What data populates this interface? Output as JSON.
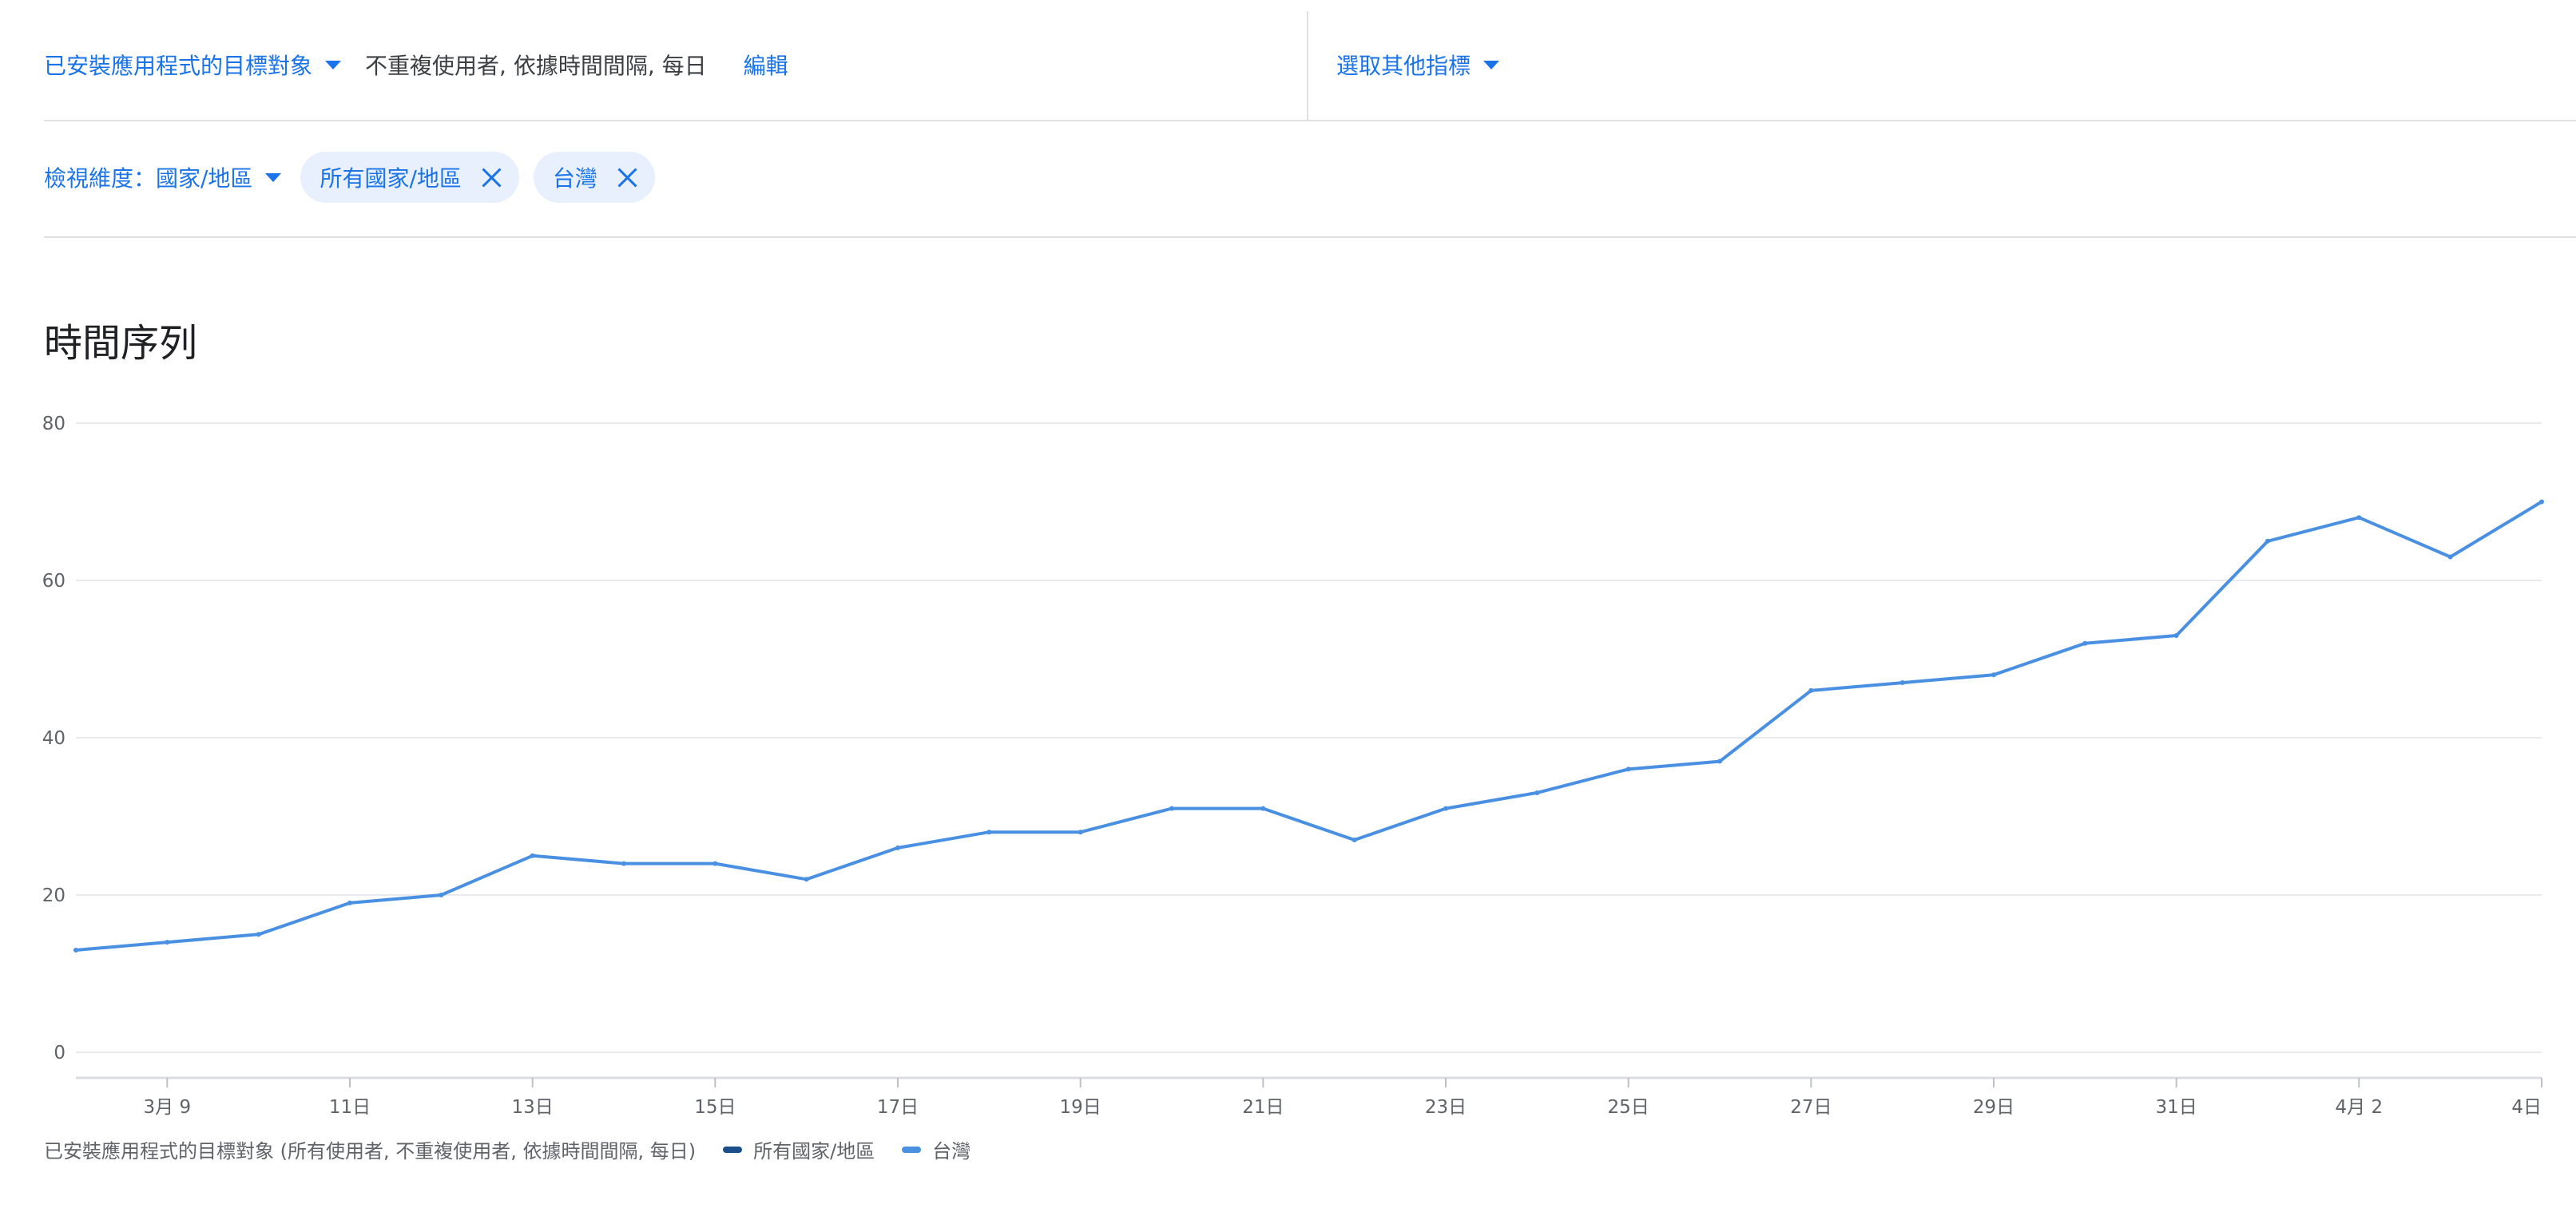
{
  "toolbar": {
    "metric_dropdown_label": "已安裝應用程式的目標對象",
    "metric_description": "不重複使用者, 依據時間間隔, 每日",
    "edit_label": "編輯",
    "other_metric_label": "選取其他指標"
  },
  "filters": {
    "dimension_label": "檢視維度：國家/地區",
    "chips": [
      "所有國家/地區",
      "台灣"
    ]
  },
  "section_title": "時間序列",
  "legend": {
    "caption": "已安裝應用程式的目標對象 (所有使用者, 不重複使用者, 依據時間間隔, 每日)",
    "items": [
      {
        "label": "所有國家/地區",
        "color": "#1b4f8a"
      },
      {
        "label": "台灣",
        "color": "#4a90e2"
      }
    ]
  },
  "chart_data": {
    "type": "line",
    "title": "",
    "xlabel": "",
    "ylabel": "",
    "ylim": [
      0,
      80
    ],
    "y_ticks": [
      0,
      20,
      40,
      60,
      80
    ],
    "grid": true,
    "legend_position": "bottom-left",
    "x": [
      "3月 8",
      "3月 9",
      "3月 10",
      "3月 11",
      "3月 12",
      "3月 13",
      "3月 14",
      "3月 15",
      "3月 16",
      "3月 17",
      "3月 18",
      "3月 19",
      "3月 20",
      "3月 21",
      "3月 22",
      "3月 23",
      "3月 24",
      "3月 25",
      "3月 26",
      "3月 27",
      "3月 28",
      "3月 29",
      "3月 30",
      "3月 31",
      "4月 1",
      "4月 2",
      "4月 3",
      "4月 4"
    ],
    "x_tick_labels": [
      {
        "x": "3月 9",
        "label": "3月 9"
      },
      {
        "x": "3月 11",
        "label": "11日"
      },
      {
        "x": "3月 13",
        "label": "13日"
      },
      {
        "x": "3月 15",
        "label": "15日"
      },
      {
        "x": "3月 17",
        "label": "17日"
      },
      {
        "x": "3月 19",
        "label": "19日"
      },
      {
        "x": "3月 21",
        "label": "21日"
      },
      {
        "x": "3月 23",
        "label": "23日"
      },
      {
        "x": "3月 25",
        "label": "25日"
      },
      {
        "x": "3月 27",
        "label": "27日"
      },
      {
        "x": "3月 29",
        "label": "29日"
      },
      {
        "x": "3月 31",
        "label": "31日"
      },
      {
        "x": "4月 2",
        "label": "4月 2"
      },
      {
        "x": "4月 4",
        "label": "4日"
      }
    ],
    "series": [
      {
        "name": "台灣",
        "color": "#4a90e2",
        "values": [
          13,
          14,
          15,
          19,
          20,
          25,
          24,
          24,
          22,
          26,
          28,
          28,
          31,
          31,
          27,
          31,
          33,
          36,
          37,
          46,
          47,
          48,
          52,
          53,
          65,
          68,
          63,
          70
        ]
      }
    ]
  }
}
